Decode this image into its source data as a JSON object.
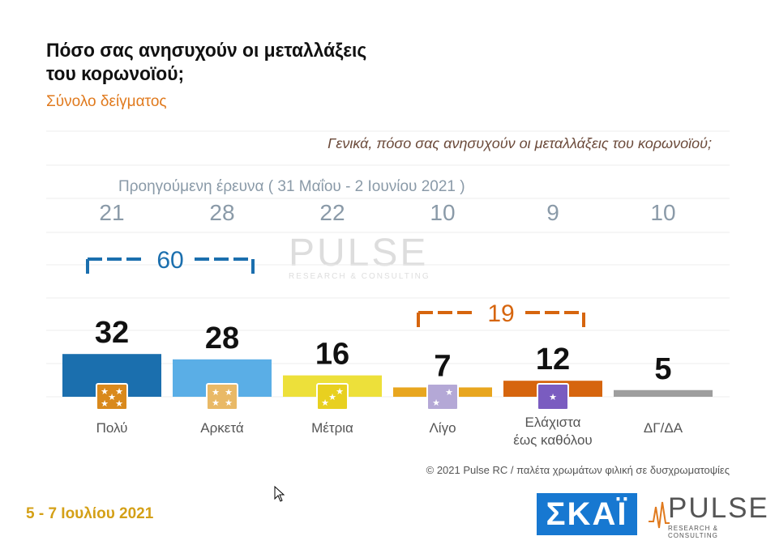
{
  "header": {
    "title_line1": "Πόσο σας ανησυχούν οι μεταλλάξεις",
    "title_line2": "του κορωνοϊού;",
    "subtitle": "Σύνολο δείγματος",
    "question": "Γενικά, πόσο σας ανησυχούν οι μεταλλάξεις του κορωνοϊού;",
    "previous_label": "Προηγούμενη έρευνα  ( 31 Μαΐου - 2 Ιουνίου 2021 )"
  },
  "chart_data": {
    "type": "bar",
    "categories": [
      "Πολύ",
      "Αρκετά",
      "Μέτρια",
      "Λίγο",
      "Ελάχιστα έως καθόλου",
      "ΔΓ/ΔΑ"
    ],
    "category_lines": [
      [
        "Πολύ"
      ],
      [
        "Αρκετά"
      ],
      [
        "Μέτρια"
      ],
      [
        "Λίγο"
      ],
      [
        "Ελάχιστα",
        "έως καθόλου"
      ],
      [
        "ΔΓ/ΔΑ"
      ]
    ],
    "values": [
      32,
      28,
      16,
      7,
      12,
      5
    ],
    "previous_values": [
      21,
      28,
      22,
      10,
      9,
      10
    ],
    "colors": [
      "#1b6fae",
      "#5aaee6",
      "#ede03a",
      "#e8a61f",
      "#d6650e",
      "#9e9e9e"
    ],
    "icon_colors": [
      "#d9891c",
      "#e9b966",
      "#e8d020",
      "#b4a8d6",
      "#7a5cc0",
      null
    ],
    "star_counts": [
      5,
      4,
      3,
      2,
      1,
      0
    ],
    "groups": [
      {
        "label": "60",
        "from": 0,
        "to": 1,
        "color": "#1b6fae"
      },
      {
        "label": "19",
        "from": 3,
        "to": 4,
        "color": "#d6650e"
      }
    ]
  },
  "footer": {
    "date": "5 - 7  Ιουλίου  2021",
    "copyright": "© 2021 Pulse RC   /   παλέτα χρωμάτων φιλική σε δυσχρωματοψίες"
  },
  "watermark": {
    "brand": "PULSE",
    "tagline": "RESEARCH & CONSULTING"
  },
  "logos": {
    "skai": "ΣΚΑΪ",
    "pulse": "PULSE",
    "pulse_tagline": "RESEARCH & CONSULTING"
  }
}
